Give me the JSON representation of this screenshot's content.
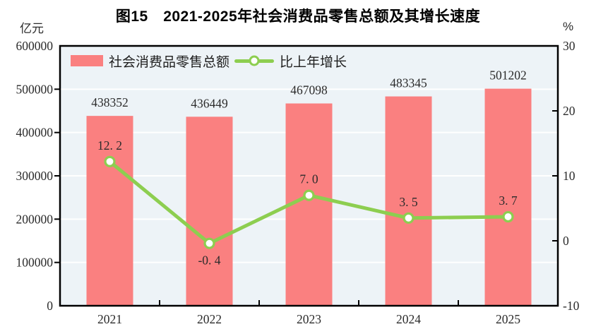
{
  "title": "图15　2021-2025年社会消费品零售总额及其增长速度",
  "axes": {
    "left_unit": "亿元",
    "right_unit": "%"
  },
  "legend": {
    "bar_label": "社会消费品零售总额",
    "line_label": "比上年增长"
  },
  "colors": {
    "bar": "#fa8080",
    "line": "#8dce50",
    "marker_fill": "#ffffff",
    "panel_bg": "#edf3f7",
    "grid": "#ffffff",
    "axis": "#000000",
    "text": "#2b2b2b"
  },
  "chart_data": {
    "type": "bar+line",
    "title": "图15　2021-2025年社会消费品零售总额及其增长速度",
    "categories": [
      "2021",
      "2022",
      "2023",
      "2024",
      "2025"
    ],
    "series": [
      {
        "name": "社会消费品零售总额",
        "type": "bar",
        "axis": "left",
        "unit": "亿元",
        "values": [
          438352,
          436449,
          467098,
          483345,
          501202
        ]
      },
      {
        "name": "比上年增长",
        "type": "line",
        "axis": "right",
        "unit": "%",
        "values": [
          12.2,
          -0.4,
          7.0,
          3.5,
          3.7
        ]
      }
    ],
    "left_axis": {
      "min": 0,
      "max": 600000,
      "step": 100000,
      "tick_labels": [
        "0",
        "100000",
        "200000",
        "300000",
        "400000",
        "500000",
        "600000"
      ]
    },
    "right_axis": {
      "min": -10,
      "max": 30,
      "step": 10,
      "tick_labels": [
        "-10",
        "0",
        "10",
        "20",
        "30"
      ]
    },
    "value_labels": {
      "bar": [
        "438352",
        "436449",
        "467098",
        "483345",
        "501202"
      ],
      "line": [
        "12. 2",
        "-0. 4",
        "7. 0",
        "3. 5",
        "3. 7"
      ]
    },
    "grid": "horizontal-white",
    "legend_position": "top-left-inside"
  }
}
